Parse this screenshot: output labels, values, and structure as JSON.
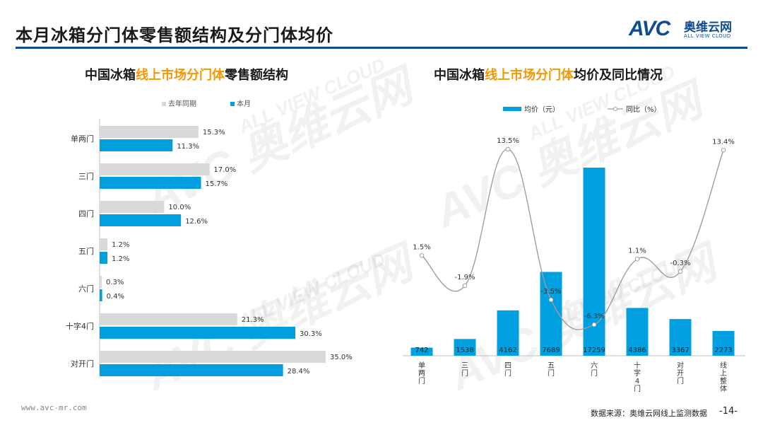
{
  "page": {
    "title": "本月冰箱分门体零售额结构及分门体均价",
    "logo_mark": "AVC",
    "logo_cn": "奥维云网",
    "logo_en": "ALL VIEW CLOUD",
    "watermark_cn": "奥维云网",
    "watermark_en": "ALL VIEW CLOUD",
    "footer_url": "www.avc-mr.com",
    "footer_source": "数据来源：奥维云网线上监测数据",
    "page_number": "-14-"
  },
  "colors": {
    "grey_bar": "#d9d9d9",
    "blue_bar": "#00a0e0",
    "line": "#9e9e9e",
    "highlight": "#f39800",
    "brand": "#0e4c93"
  },
  "left_chart": {
    "title_pre": "中国冰箱",
    "title_hl": "线上市场分门体",
    "title_post": "零售额结构"
  },
  "right_chart": {
    "title_pre": "中国冰箱",
    "title_hl": "线上市场分门体",
    "title_post": "均价及同比情况"
  },
  "chart_data": [
    {
      "type": "bar",
      "orientation": "horizontal",
      "title": "中国冰箱线上市场分门体零售额结构",
      "categories": [
        "单两门",
        "三门",
        "四门",
        "五门",
        "六门",
        "十字4门",
        "对开门"
      ],
      "series": [
        {
          "name": "去年同期",
          "values": [
            15.3,
            17.0,
            10.0,
            1.2,
            0.3,
            21.3,
            35.0
          ],
          "labels": [
            "15.3%",
            "17.0%",
            "10.0%",
            "1.2%",
            "0.3%",
            "21.3%",
            "35.0%"
          ]
        },
        {
          "name": "本月",
          "values": [
            11.3,
            15.7,
            12.6,
            1.2,
            0.4,
            30.3,
            28.4
          ],
          "labels": [
            "11.3%",
            "15.7%",
            "12.6%",
            "1.2%",
            "0.4%",
            "30.3%",
            "28.4%"
          ]
        }
      ],
      "unit": "%",
      "xlim": [
        0,
        35
      ]
    },
    {
      "type": "bar+line",
      "title": "中国冰箱线上市场分门体均价及同比情况",
      "categories": [
        "单两门",
        "三门",
        "四门",
        "五门",
        "六门",
        "十字4门",
        "对开门",
        "线上整体"
      ],
      "bar_series": {
        "name": "均价（元）",
        "values": [
          742,
          1538,
          4162,
          7689,
          17259,
          4386,
          3367,
          2273
        ],
        "labels": [
          "742",
          "1538",
          "4162",
          "7689",
          "17259",
          "4386",
          "3367",
          "2273"
        ]
      },
      "line_series": {
        "name": "同比（%）",
        "values": [
          1.5,
          -1.9,
          13.5,
          -3.5,
          -6.3,
          1.1,
          -0.3,
          13.4
        ],
        "labels": [
          "1.5%",
          "-1.9%",
          "13.5%",
          "-3.5%",
          "-6.3%",
          "1.1%",
          "-0.3%",
          "13.4%"
        ]
      },
      "bar_ylim": [
        0,
        17259
      ],
      "line_ylim": [
        -6.3,
        13.5
      ]
    }
  ]
}
